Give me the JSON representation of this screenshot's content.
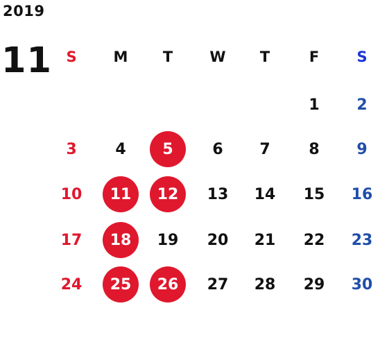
{
  "calendar": {
    "year": "2019",
    "month": "11",
    "weekdays": [
      "S",
      "M",
      "T",
      "W",
      "T",
      "F",
      "S"
    ],
    "weeks": [
      [
        "",
        "",
        "",
        "",
        "",
        "1",
        "2"
      ],
      [
        "3",
        "4",
        "5",
        "6",
        "7",
        "8",
        "9"
      ],
      [
        "10",
        "11",
        "12",
        "13",
        "14",
        "15",
        "16"
      ],
      [
        "17",
        "18",
        "19",
        "20",
        "21",
        "22",
        "23"
      ],
      [
        "24",
        "25",
        "26",
        "27",
        "28",
        "29",
        "30"
      ]
    ],
    "highlighted_days": [
      "5",
      "11",
      "12",
      "18",
      "25",
      "26"
    ]
  },
  "colors": {
    "sunday": "#e0182d",
    "saturday": "#1f4fa8",
    "saturday_header": "#1a34d6",
    "highlight": "#e0182d",
    "weekday_text": "#111111"
  }
}
